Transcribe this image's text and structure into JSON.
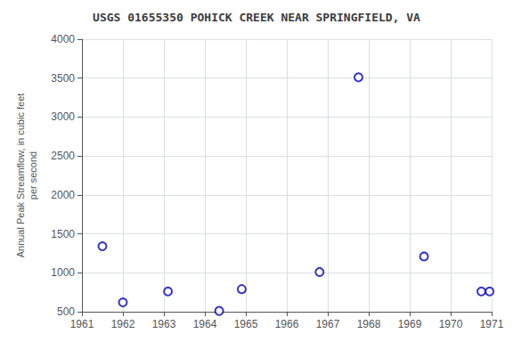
{
  "chart_data": {
    "type": "scatter",
    "title": "USGS 01655350 POHICK CREEK NEAR SPRINGFIELD, VA",
    "ylabel": "Annual Peak Streamflow, in cubic feet\nper second",
    "x": [
      1961.5,
      1962.0,
      1963.1,
      1964.35,
      1964.9,
      1966.8,
      1967.75,
      1969.35,
      1970.75,
      1970.95
    ],
    "values": [
      1340,
      620,
      760,
      510,
      790,
      1010,
      3510,
      1210,
      760,
      760
    ],
    "color": "#0000BB",
    "marker": "circle",
    "xlim": [
      1961,
      1971
    ],
    "ylim": [
      500,
      4000
    ],
    "xticks": [
      1961,
      1962,
      1963,
      1964,
      1965,
      1966,
      1967,
      1968,
      1969,
      1970,
      1971
    ],
    "yticks": [
      500,
      1000,
      1500,
      2000,
      2500,
      3000,
      3500,
      4000
    ],
    "grid": true
  }
}
